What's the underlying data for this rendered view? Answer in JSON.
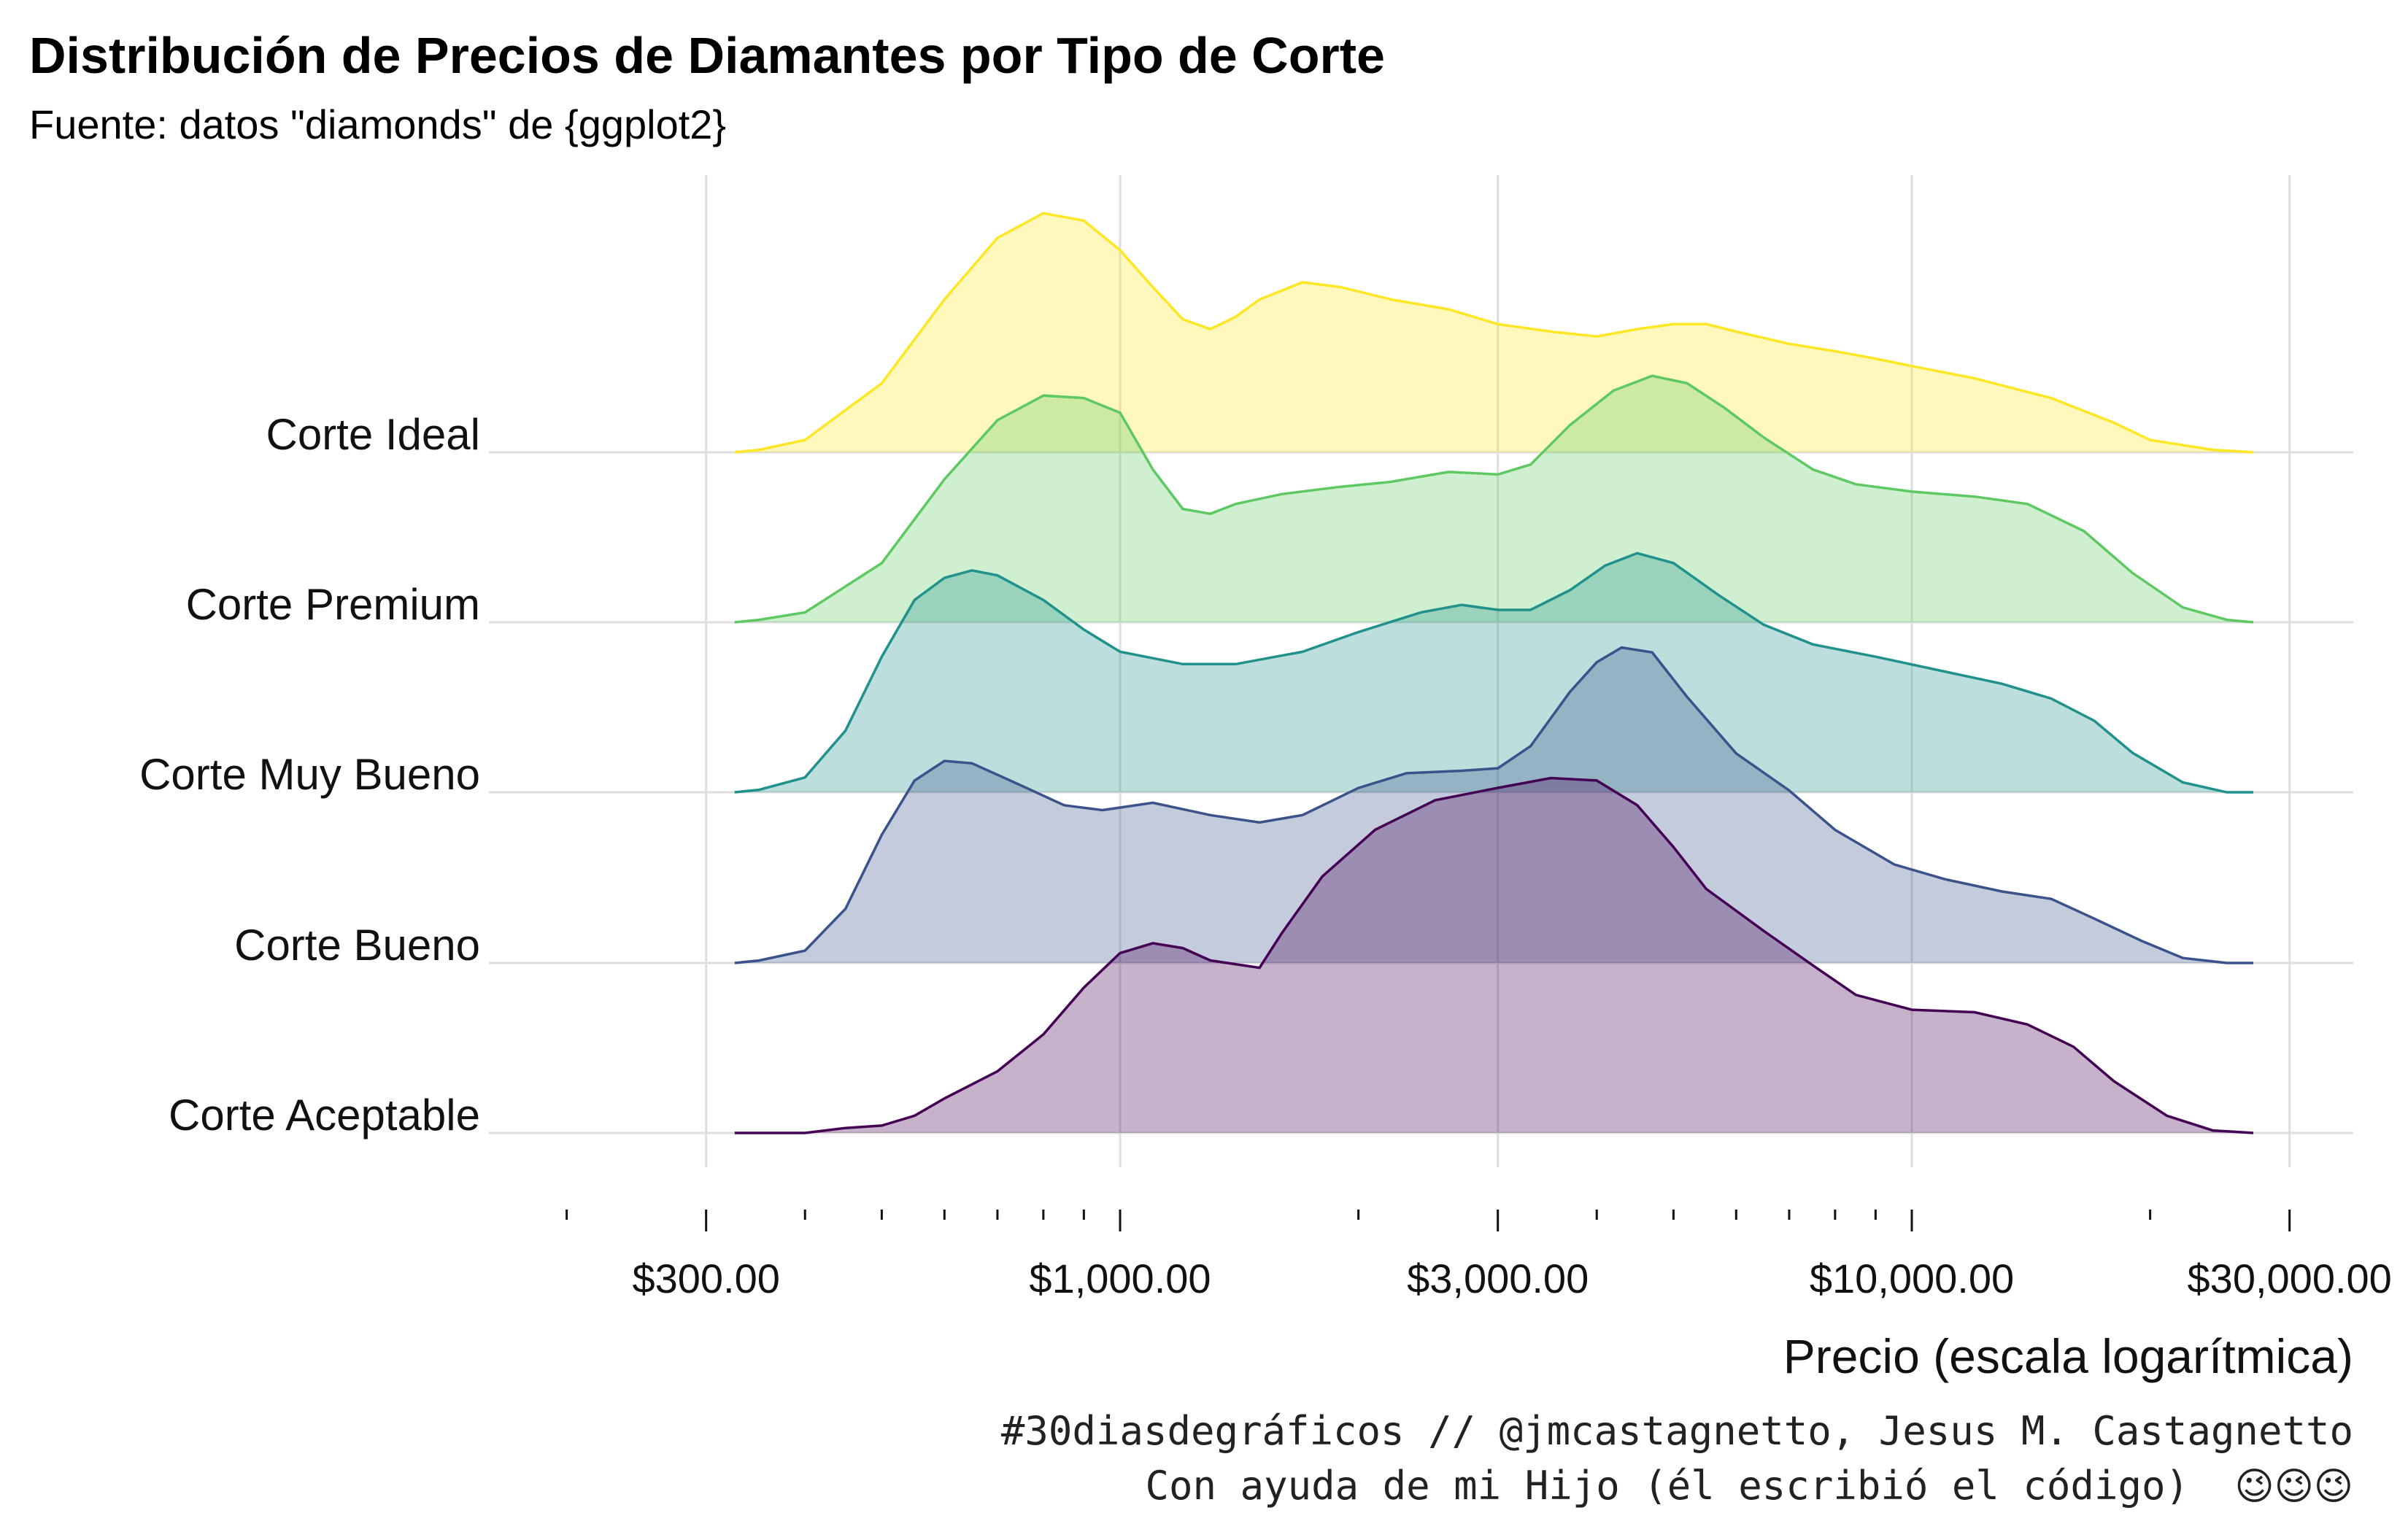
{
  "chart_data": {
    "type": "ridgeline",
    "title": "Distribución de Precios de Diamantes por Tipo de Corte",
    "subtitle": "Fuente: datos \"diamonds\" de {ggplot2}",
    "xlabel": "Precio (escala logarítmica)",
    "x_scale": "log10",
    "xlim": [
      200,
      33000
    ],
    "x_ticks": [
      {
        "value": 300,
        "label": "$300.00"
      },
      {
        "value": 1000,
        "label": "$1,000.00"
      },
      {
        "value": 3000,
        "label": "$3,000.00"
      },
      {
        "value": 10000,
        "label": "$10,000.00"
      },
      {
        "value": 30000,
        "label": "$30,000.00"
      }
    ],
    "grid": true,
    "series": [
      {
        "name": "Corte Ideal",
        "color": "#FDE725",
        "density": [
          [
            326,
            0.0
          ],
          [
            350,
            0.01
          ],
          [
            400,
            0.05
          ],
          [
            500,
            0.28
          ],
          [
            600,
            0.62
          ],
          [
            700,
            0.87
          ],
          [
            800,
            0.97
          ],
          [
            900,
            0.94
          ],
          [
            1000,
            0.82
          ],
          [
            1100,
            0.67
          ],
          [
            1200,
            0.54
          ],
          [
            1300,
            0.5
          ],
          [
            1400,
            0.55
          ],
          [
            1500,
            0.62
          ],
          [
            1700,
            0.69
          ],
          [
            1900,
            0.67
          ],
          [
            2200,
            0.62
          ],
          [
            2600,
            0.58
          ],
          [
            3000,
            0.52
          ],
          [
            3500,
            0.49
          ],
          [
            4000,
            0.47
          ],
          [
            4500,
            0.5
          ],
          [
            5000,
            0.52
          ],
          [
            5500,
            0.52
          ],
          [
            6000,
            0.49
          ],
          [
            7000,
            0.44
          ],
          [
            8000,
            0.41
          ],
          [
            9000,
            0.38
          ],
          [
            10000,
            0.35
          ],
          [
            12000,
            0.3
          ],
          [
            15000,
            0.22
          ],
          [
            18000,
            0.12
          ],
          [
            20000,
            0.05
          ],
          [
            24000,
            0.01
          ],
          [
            27000,
            0.0
          ]
        ]
      },
      {
        "name": "Corte Premium",
        "color": "#5EC962",
        "density": [
          [
            326,
            0.0
          ],
          [
            350,
            0.01
          ],
          [
            400,
            0.04
          ],
          [
            500,
            0.24
          ],
          [
            600,
            0.58
          ],
          [
            700,
            0.82
          ],
          [
            800,
            0.92
          ],
          [
            900,
            0.91
          ],
          [
            1000,
            0.85
          ],
          [
            1100,
            0.62
          ],
          [
            1200,
            0.46
          ],
          [
            1300,
            0.44
          ],
          [
            1400,
            0.48
          ],
          [
            1600,
            0.52
          ],
          [
            1900,
            0.55
          ],
          [
            2200,
            0.57
          ],
          [
            2600,
            0.61
          ],
          [
            3000,
            0.6
          ],
          [
            3300,
            0.64
          ],
          [
            3700,
            0.8
          ],
          [
            4200,
            0.94
          ],
          [
            4700,
            1.0
          ],
          [
            5200,
            0.97
          ],
          [
            5800,
            0.87
          ],
          [
            6500,
            0.75
          ],
          [
            7500,
            0.62
          ],
          [
            8500,
            0.56
          ],
          [
            10000,
            0.53
          ],
          [
            12000,
            0.51
          ],
          [
            14000,
            0.48
          ],
          [
            16500,
            0.37
          ],
          [
            19000,
            0.2
          ],
          [
            22000,
            0.06
          ],
          [
            25000,
            0.01
          ],
          [
            27000,
            0.0
          ]
        ]
      },
      {
        "name": "Corte Muy Bueno",
        "color": "#21918C",
        "density": [
          [
            326,
            0.0
          ],
          [
            350,
            0.01
          ],
          [
            400,
            0.06
          ],
          [
            450,
            0.25
          ],
          [
            500,
            0.55
          ],
          [
            550,
            0.78
          ],
          [
            600,
            0.87
          ],
          [
            650,
            0.9
          ],
          [
            700,
            0.88
          ],
          [
            800,
            0.78
          ],
          [
            900,
            0.66
          ],
          [
            1000,
            0.57
          ],
          [
            1200,
            0.52
          ],
          [
            1400,
            0.52
          ],
          [
            1700,
            0.57
          ],
          [
            2000,
            0.65
          ],
          [
            2400,
            0.73
          ],
          [
            2700,
            0.76
          ],
          [
            3000,
            0.74
          ],
          [
            3300,
            0.74
          ],
          [
            3700,
            0.82
          ],
          [
            4100,
            0.92
          ],
          [
            4500,
            0.97
          ],
          [
            5000,
            0.93
          ],
          [
            5700,
            0.8
          ],
          [
            6500,
            0.68
          ],
          [
            7500,
            0.6
          ],
          [
            9000,
            0.55
          ],
          [
            11000,
            0.49
          ],
          [
            13000,
            0.44
          ],
          [
            15000,
            0.38
          ],
          [
            17000,
            0.29
          ],
          [
            19000,
            0.16
          ],
          [
            22000,
            0.04
          ],
          [
            25000,
            0.0
          ],
          [
            27000,
            0.0
          ]
        ]
      },
      {
        "name": "Corte Bueno",
        "color": "#3B528B",
        "density": [
          [
            326,
            0.0
          ],
          [
            350,
            0.01
          ],
          [
            400,
            0.05
          ],
          [
            450,
            0.22
          ],
          [
            500,
            0.52
          ],
          [
            550,
            0.74
          ],
          [
            600,
            0.82
          ],
          [
            650,
            0.81
          ],
          [
            750,
            0.72
          ],
          [
            850,
            0.64
          ],
          [
            950,
            0.62
          ],
          [
            1100,
            0.65
          ],
          [
            1300,
            0.6
          ],
          [
            1500,
            0.57
          ],
          [
            1700,
            0.6
          ],
          [
            2000,
            0.71
          ],
          [
            2300,
            0.77
          ],
          [
            2700,
            0.78
          ],
          [
            3000,
            0.79
          ],
          [
            3300,
            0.88
          ],
          [
            3700,
            1.1
          ],
          [
            4000,
            1.22
          ],
          [
            4300,
            1.28
          ],
          [
            4700,
            1.26
          ],
          [
            5200,
            1.08
          ],
          [
            6000,
            0.85
          ],
          [
            7000,
            0.7
          ],
          [
            8000,
            0.54
          ],
          [
            9500,
            0.4
          ],
          [
            11000,
            0.34
          ],
          [
            13000,
            0.29
          ],
          [
            15000,
            0.26
          ],
          [
            17000,
            0.18
          ],
          [
            19500,
            0.09
          ],
          [
            22000,
            0.02
          ],
          [
            25000,
            0.0
          ],
          [
            27000,
            0.0
          ]
        ]
      },
      {
        "name": "Corte Aceptable",
        "color": "#440154",
        "density": [
          [
            326,
            0.0
          ],
          [
            350,
            0.0
          ],
          [
            400,
            0.0
          ],
          [
            450,
            0.02
          ],
          [
            500,
            0.03
          ],
          [
            550,
            0.07
          ],
          [
            600,
            0.14
          ],
          [
            700,
            0.25
          ],
          [
            800,
            0.4
          ],
          [
            900,
            0.59
          ],
          [
            1000,
            0.73
          ],
          [
            1100,
            0.77
          ],
          [
            1200,
            0.75
          ],
          [
            1300,
            0.7
          ],
          [
            1500,
            0.67
          ],
          [
            1600,
            0.81
          ],
          [
            1800,
            1.04
          ],
          [
            2100,
            1.23
          ],
          [
            2500,
            1.35
          ],
          [
            3000,
            1.4
          ],
          [
            3500,
            1.44
          ],
          [
            4000,
            1.43
          ],
          [
            4500,
            1.33
          ],
          [
            5000,
            1.16
          ],
          [
            5500,
            0.99
          ],
          [
            6500,
            0.82
          ],
          [
            7500,
            0.68
          ],
          [
            8500,
            0.56
          ],
          [
            10000,
            0.5
          ],
          [
            12000,
            0.49
          ],
          [
            14000,
            0.44
          ],
          [
            16000,
            0.35
          ],
          [
            18000,
            0.21
          ],
          [
            21000,
            0.07
          ],
          [
            24000,
            0.01
          ],
          [
            27000,
            0.0
          ]
        ]
      }
    ],
    "caption_lines": [
      "#30diasdegráficos // @jmcastagnetto, Jesus M. Castagnetto",
      "Con ayuda de mi Hijo (él escribió el código)"
    ],
    "caption_emoji": "😉😉😉"
  }
}
